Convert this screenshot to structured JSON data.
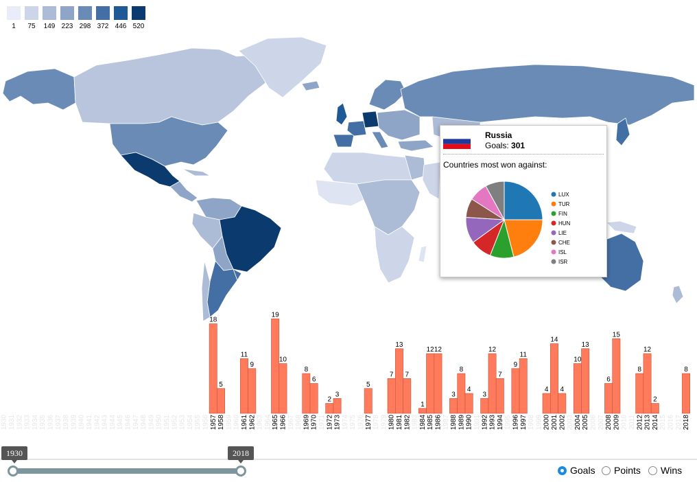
{
  "legend": {
    "labels": [
      "1",
      "75",
      "149",
      "223",
      "298",
      "372",
      "446",
      "520"
    ],
    "colors": [
      "#eaecf9",
      "#cdd5e8",
      "#acbbd6",
      "#8ea5c7",
      "#6a8bb6",
      "#446fa4",
      "#1f5a96",
      "#0b3a6e"
    ]
  },
  "tooltip": {
    "country": "Russia",
    "goals_label": "Goals:",
    "goals_value": "301",
    "subtitle": "Countries most won against:",
    "flag_colors": [
      "#ffffff",
      "#1d3b9c",
      "#e30b17"
    ]
  },
  "chart_data": [
    {
      "type": "pie",
      "labels": [
        "LUX",
        "TUR",
        "FIN",
        "HUN",
        "LIE",
        "CHE",
        "ISL",
        "ISR"
      ],
      "values": [
        25,
        21,
        10,
        9,
        11,
        8,
        8,
        8
      ],
      "colors": [
        "#1f77b4",
        "#ff7f0e",
        "#2ca02c",
        "#d62728",
        "#9467bd",
        "#8c564b",
        "#e377c2",
        "#7f7f7f"
      ],
      "legend_position": "right"
    },
    {
      "type": "bar",
      "title": "",
      "years_all": [
        "1930",
        "1931",
        "1932",
        "1933",
        "1934",
        "1935",
        "1936",
        "1937",
        "1938",
        "1939",
        "1940",
        "1941",
        "1942",
        "1943",
        "1944",
        "1945",
        "1946",
        "1947",
        "1948",
        "1949",
        "1950",
        "1951",
        "1952",
        "1953",
        "1954",
        "1955",
        "1956",
        "1957",
        "1958",
        "1959",
        "1960",
        "1961",
        "1962",
        "1963",
        "1964",
        "1965",
        "1966",
        "1967",
        "1968",
        "1969",
        "1970",
        "1971",
        "1972",
        "1973",
        "1974",
        "1975",
        "1976",
        "1977",
        "1978",
        "1979",
        "1980",
        "1981",
        "1982",
        "1983",
        "1984",
        "1985",
        "1986",
        "1987",
        "1988",
        "1989",
        "1990",
        "1991",
        "1992",
        "1993",
        "1994",
        "1995",
        "1996",
        "1997",
        "1998",
        "1999",
        "2000",
        "2001",
        "2002",
        "2003",
        "2004",
        "2005",
        "2006",
        "2007",
        "2008",
        "2009",
        "2010",
        "2011",
        "2012",
        "2013",
        "2014",
        "2015",
        "2016",
        "2017",
        "2018"
      ],
      "categories": [
        "1957",
        "1958",
        "1961",
        "1962",
        "1965",
        "1966",
        "1969",
        "1970",
        "1972",
        "1973",
        "1977",
        "1980",
        "1981",
        "1982",
        "1984",
        "1985",
        "1986",
        "1988",
        "1989",
        "1990",
        "1992",
        "1993",
        "1994",
        "1996",
        "1997",
        "2000",
        "2001",
        "2002",
        "2004",
        "2005",
        "2008",
        "2009",
        "2012",
        "2013",
        "2014",
        "2018"
      ],
      "values": [
        18,
        5,
        11,
        9,
        19,
        10,
        8,
        6,
        2,
        3,
        5,
        7,
        13,
        7,
        1,
        12,
        12,
        3,
        8,
        4,
        3,
        12,
        7,
        9,
        11,
        4,
        14,
        4,
        10,
        13,
        6,
        15,
        8,
        12,
        2,
        8
      ],
      "color": "#ff7b5c",
      "ylim": [
        0,
        19
      ]
    }
  ],
  "slider": {
    "start_label": "1930",
    "end_label": "2018"
  },
  "metrics": {
    "options": [
      {
        "label": "Goals"
      },
      {
        "label": "Points"
      },
      {
        "label": "Wins"
      }
    ],
    "selected": "Goals"
  }
}
